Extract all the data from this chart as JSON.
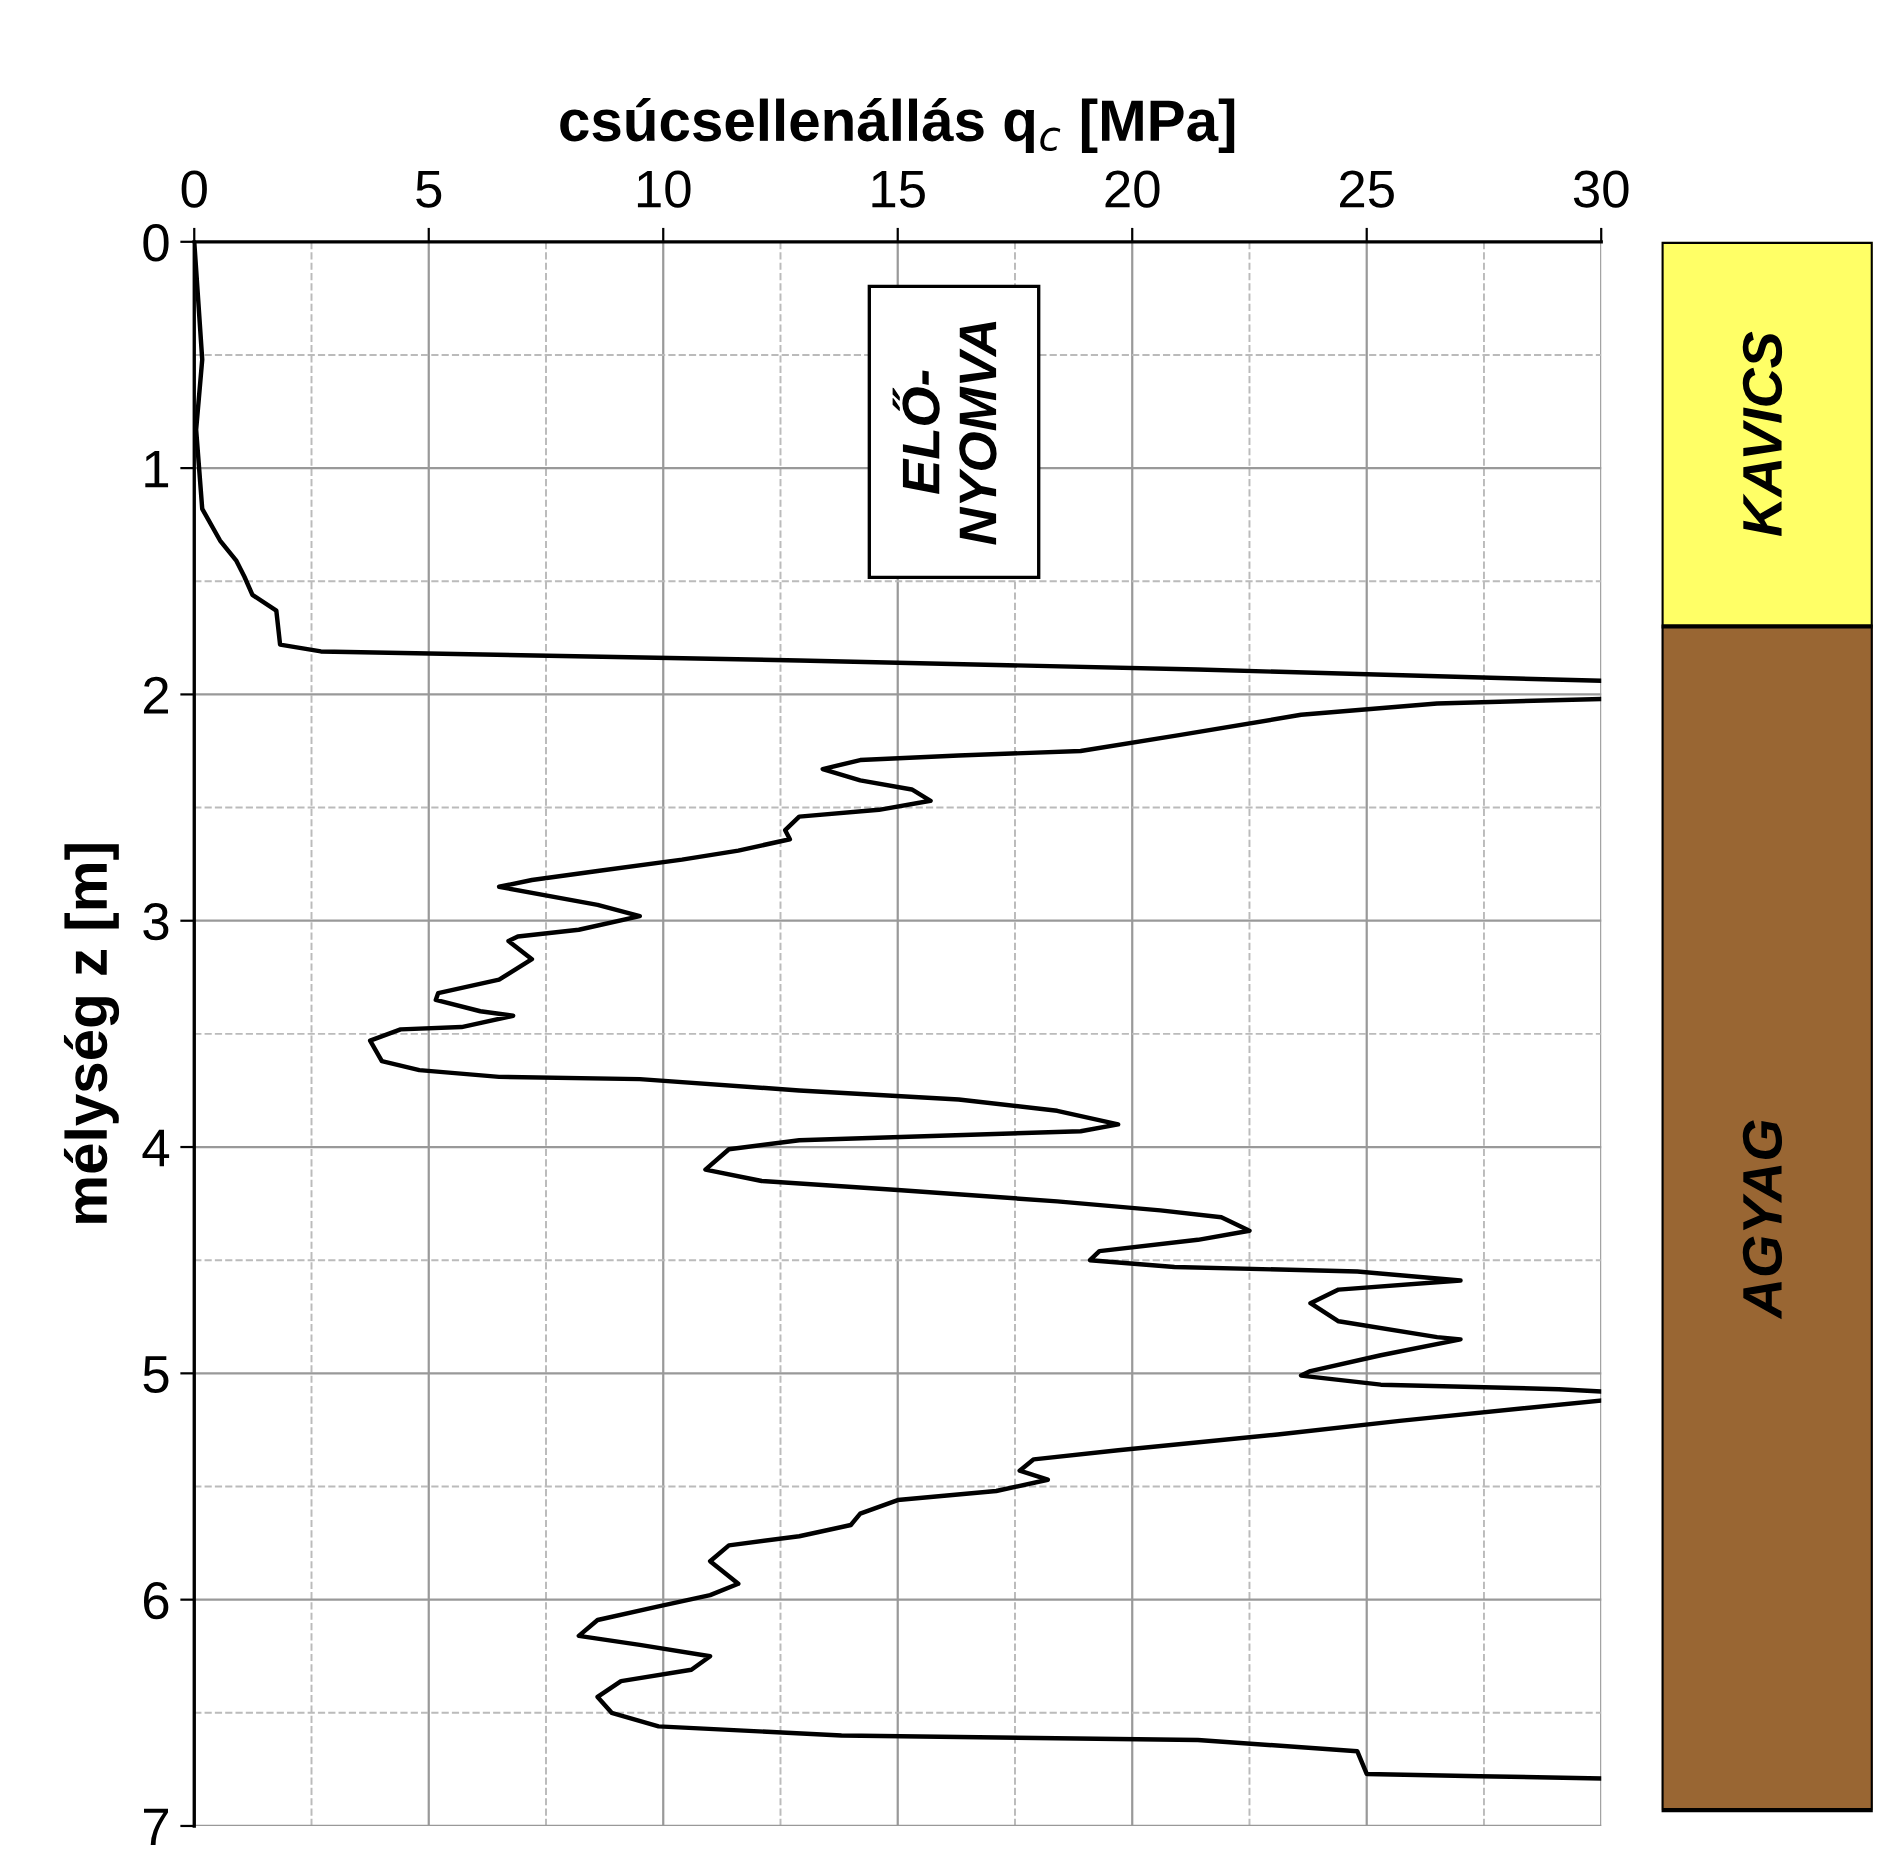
{
  "chart_data": [
    {
      "type": "line",
      "xlabel": "csúcsellenállás q$_{c}$ [MPa]",
      "ylabel": "mélység z [m]",
      "xlim": [
        0,
        30
      ],
      "xticks": [
        0,
        5,
        10,
        15,
        20,
        25,
        30
      ],
      "ylim": [
        7,
        0
      ],
      "yticks": [
        0,
        1,
        2,
        3,
        4,
        5,
        6,
        7
      ],
      "grid": true,
      "annotations": [
        "ELŐ-\nNYOMVA"
      ],
      "series": [
        {
          "color": "#000000",
          "x": [
            0,
            0.17,
            0.04,
            0.17,
            0.55,
            0.9,
            1.07,
            1.24,
            1.75,
            1.83,
            2.7,
            12.9,
            21.4,
            30,
            null,
            30,
            26.5,
            23.6,
            21,
            18.9,
            16.3,
            14.2,
            13.4,
            14.2,
            15.3,
            15.7,
            14.6,
            12.9,
            12.6,
            12.7,
            11.6,
            10.4,
            8.6,
            7.2,
            6.5,
            8.6,
            9.5,
            8.2,
            6.9,
            6.7,
            7.2,
            6.5,
            5.2,
            5.15,
            6.1,
            6.8,
            5.7,
            4.4,
            3.75,
            4.0,
            4.8,
            6.5,
            9.5,
            12.9,
            16.3,
            18.4,
            19.7,
            18.9,
            15.9,
            12.9,
            11.4,
            10.9,
            12.1,
            15,
            18.4,
            20.6,
            21.9,
            22.5,
            21.4,
            19.3,
            19.1,
            20.9,
            24.8,
            27,
            24.4,
            23.8,
            24.4,
            26.5,
            27,
            25.3,
            23.8,
            23.6,
            25.3,
            29.1,
            30,
            null,
            30,
            25.7,
            23.1,
            19.7,
            17.9,
            17.6,
            18.2,
            17.1,
            15,
            14.2,
            14,
            12.9,
            11.4,
            11,
            11.6,
            11,
            9.9,
            8.6,
            8.2,
            9.5,
            11,
            10.6,
            9.1,
            8.6,
            8.9,
            9.9,
            13.8,
            21.4,
            24.8,
            25,
            27.4,
            30
          ],
          "values": [
            0,
            0.52,
            0.83,
            1.18,
            1.32,
            1.41,
            1.48,
            1.56,
            1.63,
            1.78,
            1.81,
            1.85,
            1.89,
            1.94,
            null,
            2.02,
            2.04,
            2.09,
            2.18,
            2.25,
            2.27,
            2.29,
            2.33,
            2.38,
            2.42,
            2.47,
            2.51,
            2.54,
            2.6,
            2.64,
            2.69,
            2.73,
            2.78,
            2.82,
            2.85,
            2.93,
            2.98,
            3.04,
            3.07,
            3.09,
            3.17,
            3.26,
            3.32,
            3.35,
            3.4,
            3.42,
            3.47,
            3.48,
            3.53,
            3.62,
            3.66,
            3.69,
            3.7,
            3.75,
            3.79,
            3.84,
            3.9,
            3.93,
            3.95,
            3.97,
            4.01,
            4.1,
            4.15,
            4.19,
            4.24,
            4.28,
            4.31,
            4.37,
            4.41,
            4.46,
            4.5,
            4.53,
            4.55,
            4.59,
            4.63,
            4.69,
            4.77,
            4.84,
            4.85,
            4.92,
            4.99,
            5.01,
            5.05,
            5.07,
            5.08,
            null,
            5.12,
            5.21,
            5.27,
            5.34,
            5.38,
            5.43,
            5.47,
            5.52,
            5.56,
            5.62,
            5.67,
            5.72,
            5.76,
            5.83,
            5.93,
            5.98,
            6.03,
            6.09,
            6.16,
            6.2,
            6.25,
            6.31,
            6.36,
            6.43,
            6.5,
            6.56,
            6.6,
            6.62,
            6.67,
            6.77,
            6.78,
            6.79
          ]
        }
      ]
    },
    {
      "type": "bar",
      "stacked": true,
      "categories": [
        null
      ],
      "ylim": [
        7,
        0
      ],
      "tick_labels": false,
      "series": [
        {
          "name": "KAVICS",
          "color": "#ffff66",
          "values": [
            1.7
          ]
        },
        {
          "name": "AGYAG",
          "color": "#996633",
          "values": [
            5.23
          ]
        }
      ]
    }
  ]
}
